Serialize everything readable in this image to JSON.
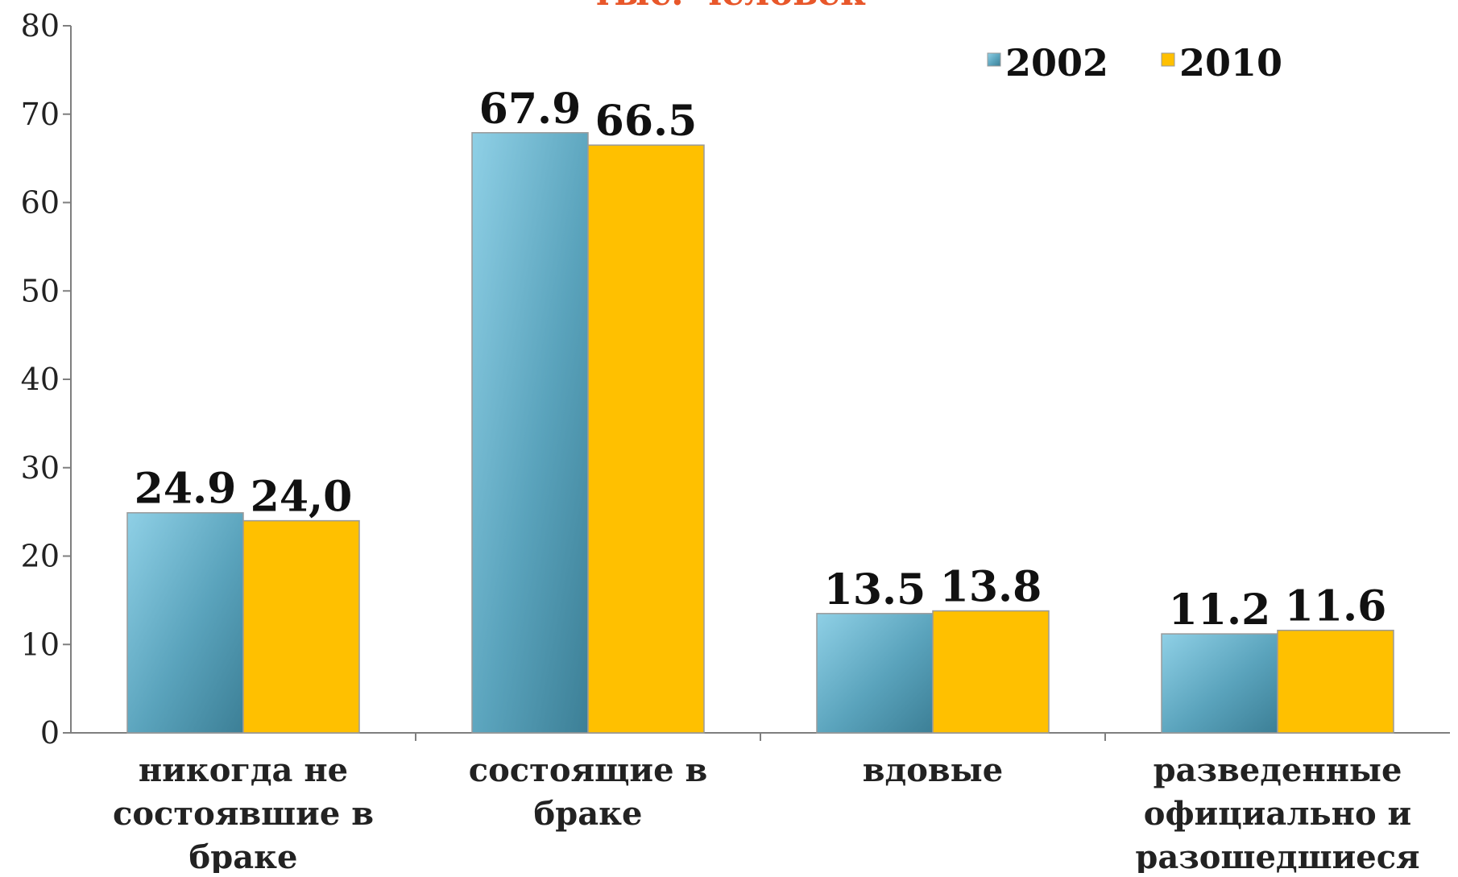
{
  "chart_data": {
    "type": "bar",
    "title": "тыс. человек",
    "categories": [
      [
        "никогда не",
        "состоявшие в",
        "браке"
      ],
      [
        "состоящие в",
        "браке"
      ],
      [
        "вдовые"
      ],
      [
        "разведенные",
        "официально и",
        "разошедшиеся"
      ]
    ],
    "series": [
      {
        "name": "2002",
        "values": [
          24.9,
          67.9,
          13.5,
          11.2
        ],
        "labels": [
          "24.9",
          "67.9",
          "13.5",
          "11.2"
        ],
        "color": "#5a9fb8"
      },
      {
        "name": "2010",
        "values": [
          24.0,
          66.5,
          13.8,
          11.6
        ],
        "labels": [
          "24,0",
          "66.5",
          "13.8",
          "11.6"
        ],
        "color": "#ffc000"
      }
    ],
    "ylim": [
      0,
      80
    ],
    "yticks": [
      0,
      10,
      20,
      30,
      40,
      50,
      60,
      70,
      80
    ],
    "xlabel": "",
    "ylabel": "",
    "legend_position": "top-right",
    "grid": false
  }
}
